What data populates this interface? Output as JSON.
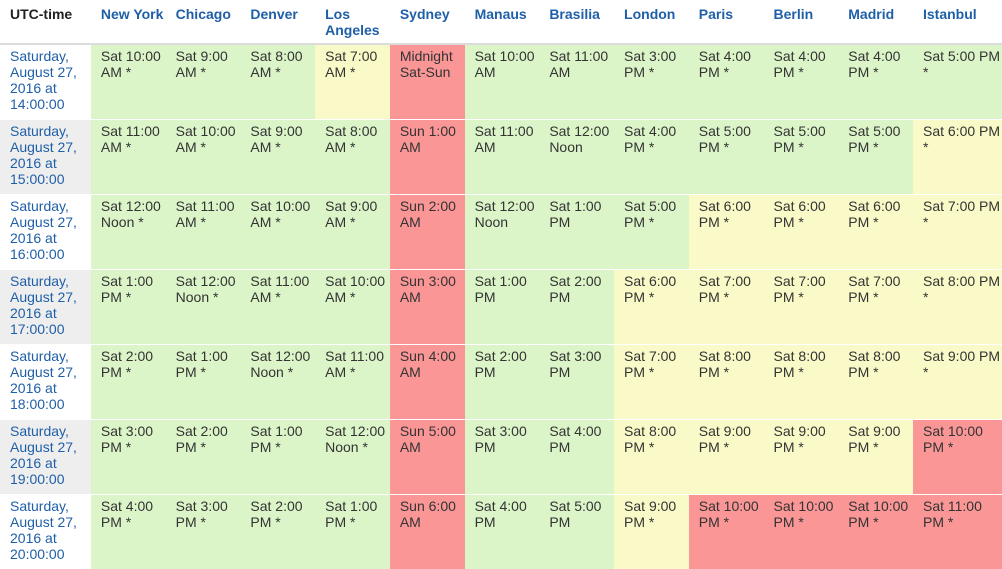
{
  "colors": {
    "green": "#dcf5c8",
    "yellow": "#fafac8",
    "red": "#fa9696",
    "link": "#1f5fa8"
  },
  "header": {
    "utc": "UTC-time",
    "cities": [
      "New York",
      "Chicago",
      "Denver",
      "Los Angeles",
      "Sydney",
      "Manaus",
      "Brasilia",
      "London",
      "Paris",
      "Berlin",
      "Madrid",
      "Istanbul"
    ]
  },
  "rows": [
    {
      "utc": "Saturday, August 27, 2016 at 14:00:00",
      "cells": [
        {
          "text": "Sat 10:00 AM *",
          "status": "green"
        },
        {
          "text": "Sat 9:00 AM *",
          "status": "green"
        },
        {
          "text": "Sat 8:00 AM *",
          "status": "green"
        },
        {
          "text": "Sat 7:00 AM *",
          "status": "yellow"
        },
        {
          "text": "Midnight Sat-Sun",
          "status": "red"
        },
        {
          "text": "Sat 10:00 AM",
          "status": "green"
        },
        {
          "text": "Sat 11:00 AM",
          "status": "green"
        },
        {
          "text": "Sat 3:00 PM *",
          "status": "green"
        },
        {
          "text": "Sat 4:00 PM *",
          "status": "green"
        },
        {
          "text": "Sat 4:00 PM *",
          "status": "green"
        },
        {
          "text": "Sat 4:00 PM *",
          "status": "green"
        },
        {
          "text": "Sat 5:00 PM *",
          "status": "green"
        }
      ]
    },
    {
      "utc": "Saturday, August 27, 2016 at 15:00:00",
      "cells": [
        {
          "text": "Sat 11:00 AM *",
          "status": "green"
        },
        {
          "text": "Sat 10:00 AM *",
          "status": "green"
        },
        {
          "text": "Sat 9:00 AM *",
          "status": "green"
        },
        {
          "text": "Sat 8:00 AM *",
          "status": "green"
        },
        {
          "text": "Sun 1:00 AM",
          "status": "red"
        },
        {
          "text": "Sat 11:00 AM",
          "status": "green"
        },
        {
          "text": "Sat 12:00 Noon",
          "status": "green"
        },
        {
          "text": "Sat 4:00 PM *",
          "status": "green"
        },
        {
          "text": "Sat 5:00 PM *",
          "status": "green"
        },
        {
          "text": "Sat 5:00 PM *",
          "status": "green"
        },
        {
          "text": "Sat 5:00 PM *",
          "status": "green"
        },
        {
          "text": "Sat 6:00 PM *",
          "status": "yellow"
        }
      ]
    },
    {
      "utc": "Saturday, August 27, 2016 at 16:00:00",
      "cells": [
        {
          "text": "Sat 12:00 Noon *",
          "status": "green"
        },
        {
          "text": "Sat 11:00 AM *",
          "status": "green"
        },
        {
          "text": "Sat 10:00 AM *",
          "status": "green"
        },
        {
          "text": "Sat 9:00 AM *",
          "status": "green"
        },
        {
          "text": "Sun 2:00 AM",
          "status": "red"
        },
        {
          "text": "Sat 12:00 Noon",
          "status": "green"
        },
        {
          "text": "Sat 1:00 PM",
          "status": "green"
        },
        {
          "text": "Sat 5:00 PM *",
          "status": "green"
        },
        {
          "text": "Sat 6:00 PM *",
          "status": "yellow"
        },
        {
          "text": "Sat 6:00 PM *",
          "status": "yellow"
        },
        {
          "text": "Sat 6:00 PM *",
          "status": "yellow"
        },
        {
          "text": "Sat 7:00 PM *",
          "status": "yellow"
        }
      ]
    },
    {
      "utc": "Saturday, August 27, 2016 at 17:00:00",
      "cells": [
        {
          "text": "Sat 1:00 PM *",
          "status": "green"
        },
        {
          "text": "Sat 12:00 Noon *",
          "status": "green"
        },
        {
          "text": "Sat 11:00 AM *",
          "status": "green"
        },
        {
          "text": "Sat 10:00 AM *",
          "status": "green"
        },
        {
          "text": "Sun 3:00 AM",
          "status": "red"
        },
        {
          "text": "Sat 1:00 PM",
          "status": "green"
        },
        {
          "text": "Sat 2:00 PM",
          "status": "green"
        },
        {
          "text": "Sat 6:00 PM *",
          "status": "yellow"
        },
        {
          "text": "Sat 7:00 PM *",
          "status": "yellow"
        },
        {
          "text": "Sat 7:00 PM *",
          "status": "yellow"
        },
        {
          "text": "Sat 7:00 PM *",
          "status": "yellow"
        },
        {
          "text": "Sat 8:00 PM *",
          "status": "yellow"
        }
      ]
    },
    {
      "utc": "Saturday, August 27, 2016 at 18:00:00",
      "cells": [
        {
          "text": "Sat 2:00 PM *",
          "status": "green"
        },
        {
          "text": "Sat 1:00 PM *",
          "status": "green"
        },
        {
          "text": "Sat 12:00 Noon *",
          "status": "green"
        },
        {
          "text": "Sat 11:00 AM *",
          "status": "green"
        },
        {
          "text": "Sun 4:00 AM",
          "status": "red"
        },
        {
          "text": "Sat 2:00 PM",
          "status": "green"
        },
        {
          "text": "Sat 3:00 PM",
          "status": "green"
        },
        {
          "text": "Sat 7:00 PM *",
          "status": "yellow"
        },
        {
          "text": "Sat 8:00 PM *",
          "status": "yellow"
        },
        {
          "text": "Sat 8:00 PM *",
          "status": "yellow"
        },
        {
          "text": "Sat 8:00 PM *",
          "status": "yellow"
        },
        {
          "text": "Sat 9:00 PM *",
          "status": "yellow"
        }
      ]
    },
    {
      "utc": "Saturday, August 27, 2016 at 19:00:00",
      "cells": [
        {
          "text": "Sat 3:00 PM *",
          "status": "green"
        },
        {
          "text": "Sat 2:00 PM *",
          "status": "green"
        },
        {
          "text": "Sat 1:00 PM *",
          "status": "green"
        },
        {
          "text": "Sat 12:00 Noon *",
          "status": "green"
        },
        {
          "text": "Sun 5:00 AM",
          "status": "red"
        },
        {
          "text": "Sat 3:00 PM",
          "status": "green"
        },
        {
          "text": "Sat 4:00 PM",
          "status": "green"
        },
        {
          "text": "Sat 8:00 PM *",
          "status": "yellow"
        },
        {
          "text": "Sat 9:00 PM *",
          "status": "yellow"
        },
        {
          "text": "Sat 9:00 PM *",
          "status": "yellow"
        },
        {
          "text": "Sat 9:00 PM *",
          "status": "yellow"
        },
        {
          "text": "Sat 10:00 PM *",
          "status": "red"
        }
      ]
    },
    {
      "utc": "Saturday, August 27, 2016 at 20:00:00",
      "cells": [
        {
          "text": "Sat 4:00 PM *",
          "status": "green"
        },
        {
          "text": "Sat 3:00 PM *",
          "status": "green"
        },
        {
          "text": "Sat 2:00 PM *",
          "status": "green"
        },
        {
          "text": "Sat 1:00 PM *",
          "status": "green"
        },
        {
          "text": "Sun 6:00 AM",
          "status": "red"
        },
        {
          "text": "Sat 4:00 PM",
          "status": "green"
        },
        {
          "text": "Sat 5:00 PM",
          "status": "green"
        },
        {
          "text": "Sat 9:00 PM *",
          "status": "yellow"
        },
        {
          "text": "Sat 10:00 PM *",
          "status": "red"
        },
        {
          "text": "Sat 10:00 PM *",
          "status": "red"
        },
        {
          "text": "Sat 10:00 PM *",
          "status": "red"
        },
        {
          "text": "Sat 11:00 PM *",
          "status": "red"
        }
      ]
    }
  ]
}
